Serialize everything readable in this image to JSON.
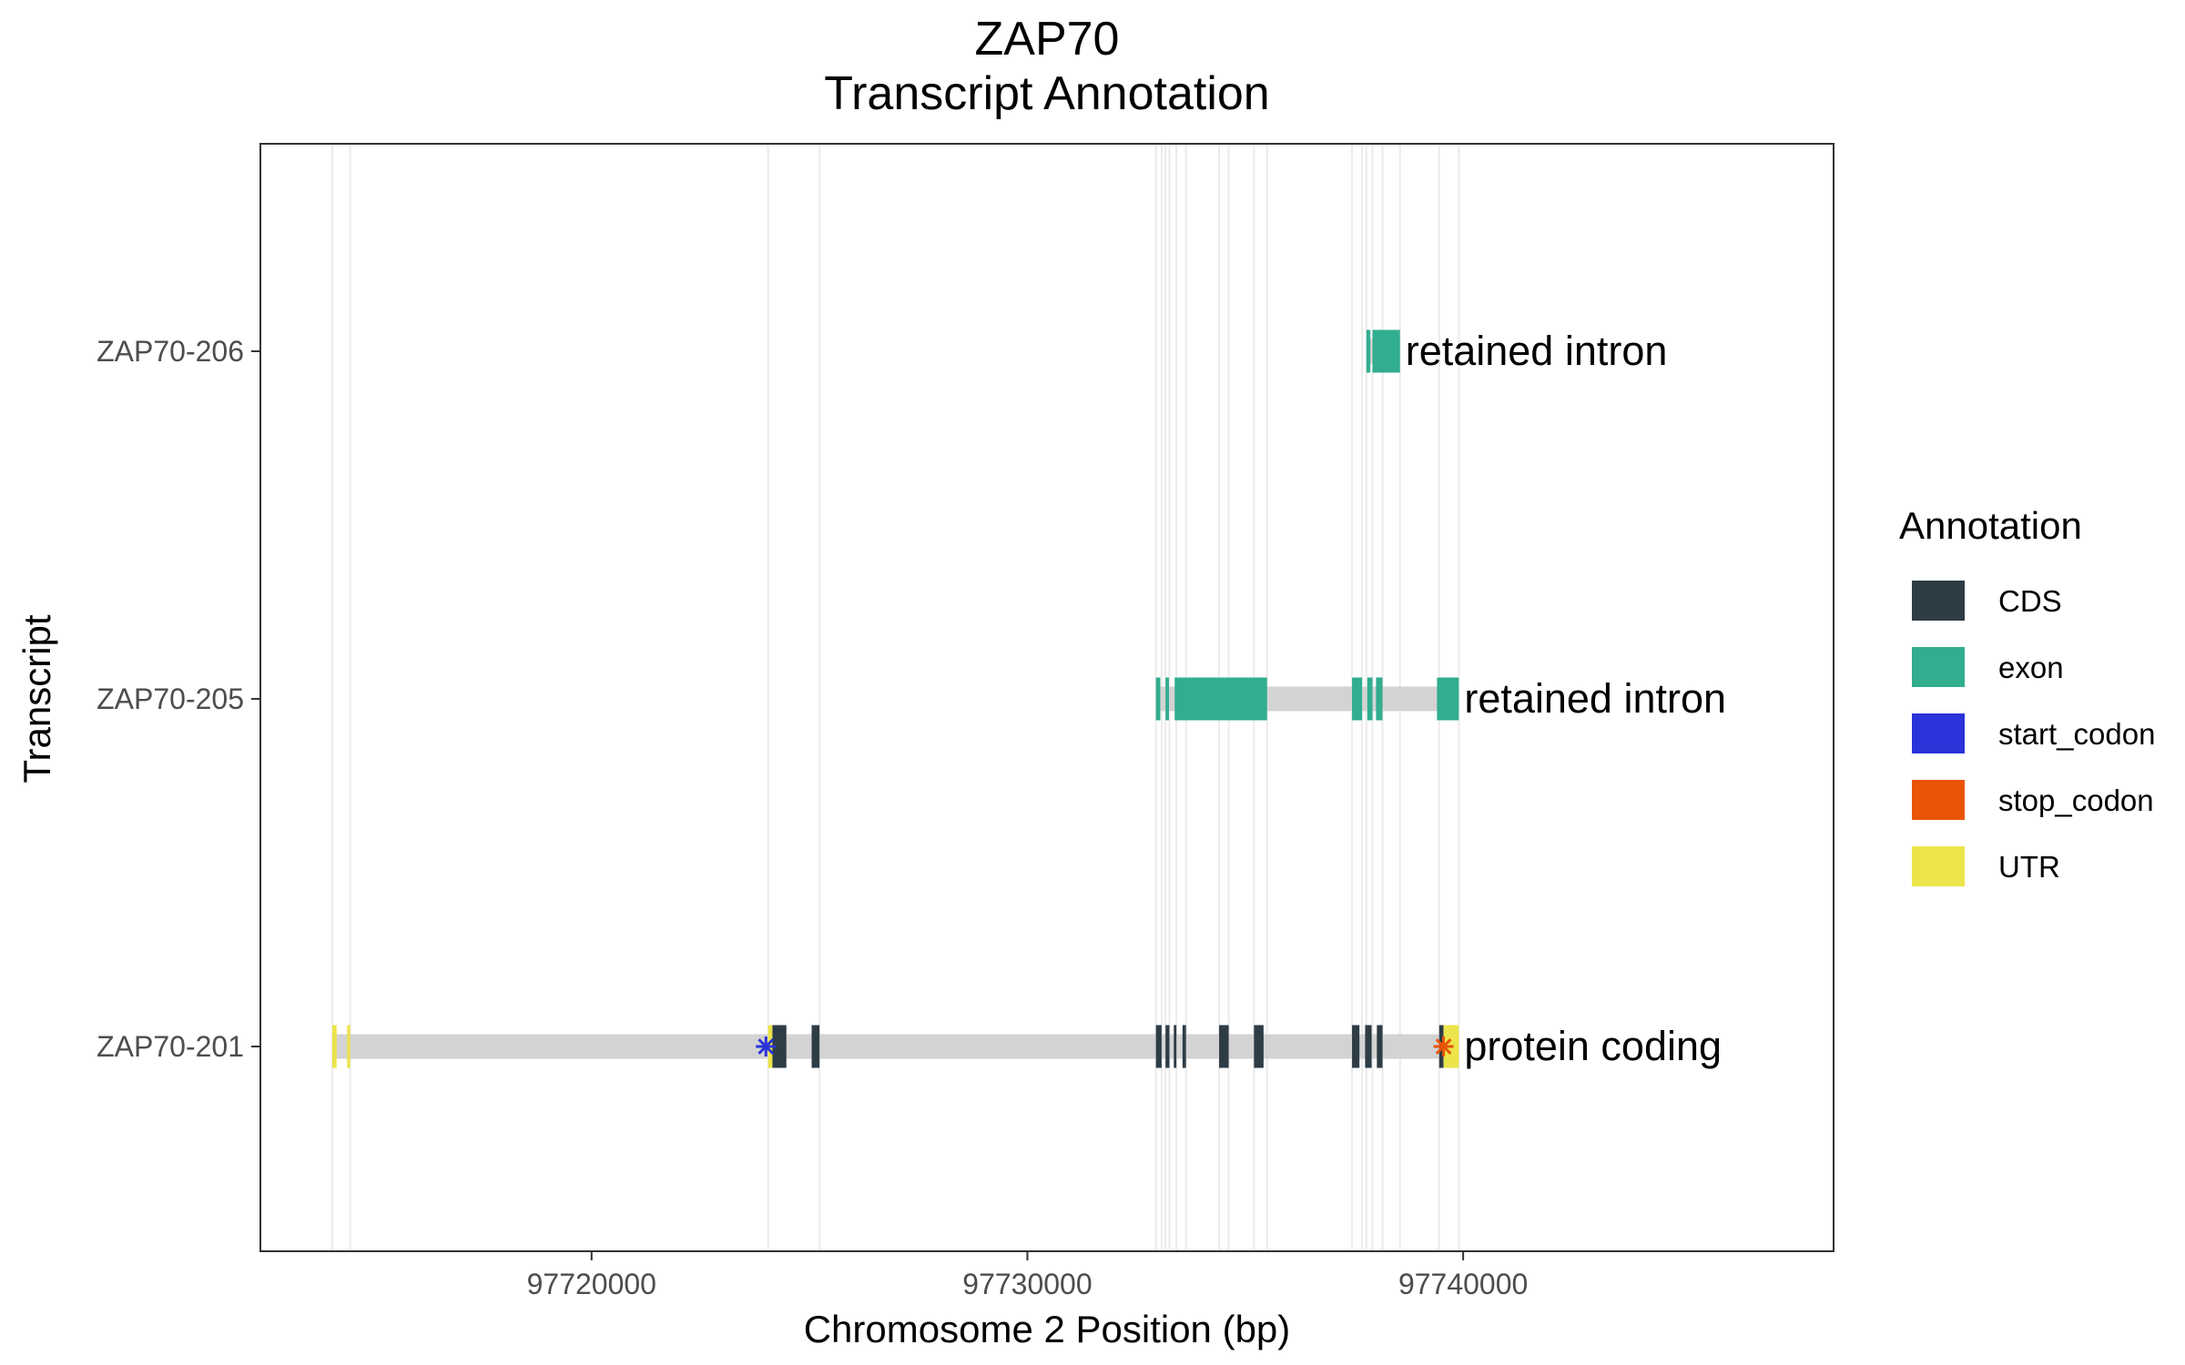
{
  "chart_data": {
    "type": "gene-transcript-annotation",
    "title": "ZAP70",
    "subtitle": "Transcript Annotation",
    "xlabel": "Chromosome 2 Position (bp)",
    "ylabel": "Transcript",
    "xlim": [
      97712400,
      97748500
    ],
    "x_ticks": [
      97720000,
      97730000,
      97740000
    ],
    "x_tick_labels": [
      "97720000",
      "97730000",
      "97740000"
    ],
    "grid": "vertical lines at feature boundaries",
    "legend_position": "right",
    "legend": {
      "title": "Annotation",
      "entries": [
        {
          "label": "CDS",
          "color": "#2e3c46"
        },
        {
          "label": "exon",
          "color": "#31ad8f"
        },
        {
          "label": "start_codon",
          "color": "#2a34d8"
        },
        {
          "label": "stop_codon",
          "color": "#ea5408"
        },
        {
          "label": "UTR",
          "color": "#ebe44a"
        }
      ]
    },
    "intron_color": "#d3d3d3",
    "transcripts": [
      {
        "name": "ZAP70-206",
        "biotype": "retained intron",
        "start": 97737780,
        "end": 97738550,
        "features": [
          {
            "type": "exon",
            "start": 97737780,
            "end": 97737870
          },
          {
            "type": "exon",
            "start": 97737920,
            "end": 97738550
          }
        ]
      },
      {
        "name": "ZAP70-205",
        "biotype": "retained intron",
        "start": 97732950,
        "end": 97739900,
        "features": [
          {
            "type": "exon",
            "start": 97732950,
            "end": 97733050
          },
          {
            "type": "exon",
            "start": 97733170,
            "end": 97733250
          },
          {
            "type": "exon",
            "start": 97733380,
            "end": 97735500
          },
          {
            "type": "exon",
            "start": 97737450,
            "end": 97737680
          },
          {
            "type": "exon",
            "start": 97737800,
            "end": 97737920
          },
          {
            "type": "exon",
            "start": 97738000,
            "end": 97738150
          },
          {
            "type": "exon",
            "start": 97739400,
            "end": 97739900
          }
        ]
      },
      {
        "name": "ZAP70-201",
        "biotype": "protein coding",
        "start": 97714050,
        "end": 97739900,
        "features": [
          {
            "type": "UTR",
            "start": 97714050,
            "end": 97714150
          },
          {
            "type": "UTR",
            "start": 97714390,
            "end": 97714460
          },
          {
            "type": "UTR",
            "start": 97724050,
            "end": 97724150
          },
          {
            "type": "CDS",
            "start": 97724150,
            "end": 97724470
          },
          {
            "type": "CDS",
            "start": 97725050,
            "end": 97725230
          },
          {
            "type": "CDS",
            "start": 97732950,
            "end": 97733080
          },
          {
            "type": "CDS",
            "start": 97733170,
            "end": 97733260
          },
          {
            "type": "CDS",
            "start": 97733360,
            "end": 97733420
          },
          {
            "type": "CDS",
            "start": 97733560,
            "end": 97733640
          },
          {
            "type": "CDS",
            "start": 97734400,
            "end": 97734620
          },
          {
            "type": "CDS",
            "start": 97735200,
            "end": 97735420
          },
          {
            "type": "CDS",
            "start": 97737450,
            "end": 97737620
          },
          {
            "type": "CDS",
            "start": 97737750,
            "end": 97737900
          },
          {
            "type": "CDS",
            "start": 97738020,
            "end": 97738150
          },
          {
            "type": "CDS",
            "start": 97739450,
            "end": 97739550
          },
          {
            "type": "UTR",
            "start": 97739550,
            "end": 97739900
          },
          {
            "type": "start_codon",
            "position": 97724000
          },
          {
            "type": "stop_codon",
            "position": 97739550
          }
        ]
      }
    ],
    "gridline_positions": [
      97714050,
      97714460,
      97724050,
      97725230,
      97732950,
      97733080,
      97733170,
      97733260,
      97733420,
      97733640,
      97734400,
      97734620,
      97735200,
      97735500,
      97737450,
      97737680,
      97737780,
      97737920,
      97738150,
      97738550,
      97739450,
      97739900
    ]
  }
}
